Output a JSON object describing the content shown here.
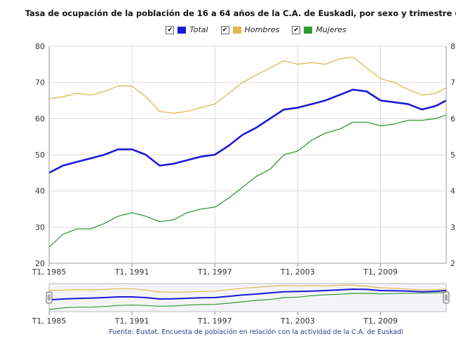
{
  "title": "Tasa de ocupación de la población de 16 a 64 años de la C.A. de Euskadi, por sexo y trimestre (%)",
  "legend": [
    {
      "label": "Total",
      "color": "#1a1ad6",
      "checked": true
    },
    {
      "label": "Hombres",
      "color": "#e0b84a",
      "checked": true
    },
    {
      "label": "Mujeres",
      "color": "#2e9a2e",
      "checked": true
    }
  ],
  "source": "Fuente: Eustat. Encuesta de población en relación con la actividad de la C.A. de Euskadi",
  "chart_data": {
    "type": "line",
    "title": "Tasa de ocupación de la población de 16 a 64 años de la C.A. de Euskadi, por sexo y trimestre (%)",
    "x_start_year": 1985,
    "x_end_year": 2013.75,
    "x_tick_labels": [
      "T1, 1985",
      "T1, 1991",
      "T1, 1997",
      "T1, 2003",
      "T1, 2009"
    ],
    "x_tick_years": [
      1985,
      1991,
      1997,
      2003,
      2009
    ],
    "ylim": [
      20,
      80
    ],
    "y_ticks": [
      20,
      30,
      40,
      50,
      60,
      70,
      80
    ],
    "y_right_tick_labels": [
      "2",
      "3",
      "4",
      "5",
      "6",
      "7",
      "8"
    ],
    "grid": true,
    "legend_position": "top",
    "series": [
      {
        "name": "Total",
        "color": "#1a1ad6",
        "points": [
          [
            1985,
            45
          ],
          [
            1986,
            47
          ],
          [
            1987,
            48
          ],
          [
            1988,
            49
          ],
          [
            1989,
            50
          ],
          [
            1990,
            51.5
          ],
          [
            1991,
            51.5
          ],
          [
            1992,
            50
          ],
          [
            1993,
            47
          ],
          [
            1994,
            47.5
          ],
          [
            1995,
            48.5
          ],
          [
            1996,
            49.5
          ],
          [
            1997,
            50
          ],
          [
            1998,
            52.5
          ],
          [
            1999,
            55.5
          ],
          [
            2000,
            57.5
          ],
          [
            2001,
            60
          ],
          [
            2002,
            62.5
          ],
          [
            2003,
            63
          ],
          [
            2004,
            64
          ],
          [
            2005,
            65
          ],
          [
            2006,
            66.5
          ],
          [
            2007,
            68
          ],
          [
            2008,
            67.5
          ],
          [
            2009,
            65
          ],
          [
            2010,
            64.5
          ],
          [
            2011,
            64
          ],
          [
            2012,
            62.5
          ],
          [
            2013,
            63.5
          ],
          [
            2013.75,
            65
          ]
        ]
      },
      {
        "name": "Hombres",
        "color": "#e0b84a",
        "points": [
          [
            1985,
            65.5
          ],
          [
            1986,
            66
          ],
          [
            1987,
            67
          ],
          [
            1988,
            66.5
          ],
          [
            1989,
            67.5
          ],
          [
            1990,
            69
          ],
          [
            1991,
            69
          ],
          [
            1992,
            66
          ],
          [
            1993,
            62
          ],
          [
            1994,
            61.5
          ],
          [
            1995,
            62
          ],
          [
            1996,
            63
          ],
          [
            1997,
            64
          ],
          [
            1998,
            67
          ],
          [
            1999,
            70
          ],
          [
            2000,
            72
          ],
          [
            2001,
            74
          ],
          [
            2002,
            76
          ],
          [
            2003,
            75
          ],
          [
            2004,
            75.5
          ],
          [
            2005,
            75
          ],
          [
            2006,
            76.5
          ],
          [
            2007,
            77
          ],
          [
            2008,
            74
          ],
          [
            2009,
            71
          ],
          [
            2010,
            70
          ],
          [
            2011,
            68
          ],
          [
            2012,
            66.5
          ],
          [
            2013,
            67
          ],
          [
            2013.75,
            68.5
          ]
        ]
      },
      {
        "name": "Mujeres",
        "color": "#2e9a2e",
        "points": [
          [
            1985,
            24.5
          ],
          [
            1986,
            28
          ],
          [
            1987,
            29.5
          ],
          [
            1988,
            29.5
          ],
          [
            1989,
            31
          ],
          [
            1990,
            33
          ],
          [
            1991,
            34
          ],
          [
            1992,
            33
          ],
          [
            1993,
            31.5
          ],
          [
            1994,
            32
          ],
          [
            1995,
            34
          ],
          [
            1996,
            35
          ],
          [
            1997,
            35.5
          ],
          [
            1998,
            38
          ],
          [
            1999,
            41
          ],
          [
            2000,
            44
          ],
          [
            2001,
            46
          ],
          [
            2002,
            50
          ],
          [
            2003,
            51
          ],
          [
            2004,
            54
          ],
          [
            2005,
            56
          ],
          [
            2006,
            57
          ],
          [
            2007,
            59
          ],
          [
            2008,
            59
          ],
          [
            2009,
            58
          ],
          [
            2010,
            58.5
          ],
          [
            2011,
            59.5
          ],
          [
            2012,
            59.5
          ],
          [
            2013,
            60
          ],
          [
            2013.75,
            61
          ]
        ]
      }
    ]
  }
}
